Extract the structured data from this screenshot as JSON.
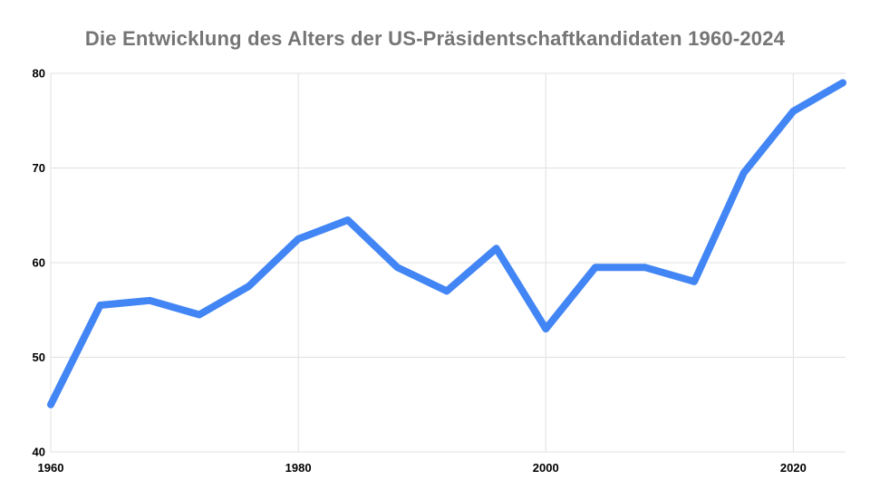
{
  "chart_data": {
    "type": "line",
    "title": "Die Entwicklung des Alters der US-Präsidentschaftkandidaten 1960-2024",
    "x": [
      1960,
      1964,
      1968,
      1972,
      1976,
      1980,
      1984,
      1988,
      1992,
      1996,
      2000,
      2004,
      2008,
      2012,
      2016,
      2020,
      2024
    ],
    "values": [
      45,
      55.5,
      56,
      54.5,
      57.5,
      62.5,
      64.5,
      59.5,
      57,
      61.5,
      53,
      59.5,
      59.5,
      58,
      69.5,
      76,
      79
    ],
    "xlabel": "",
    "ylabel": "",
    "xlim": [
      1960,
      2024
    ],
    "ylim": [
      40,
      80
    ],
    "xticks": [
      1960,
      1980,
      2000,
      2020
    ],
    "yticks": [
      40,
      50,
      60,
      70,
      80
    ],
    "grid": true,
    "legend": false
  },
  "colors": {
    "line": "#4285f4",
    "grid": "#e0e0e0",
    "axis_text": "#000000",
    "title_text": "#757575",
    "background": "#ffffff"
  }
}
